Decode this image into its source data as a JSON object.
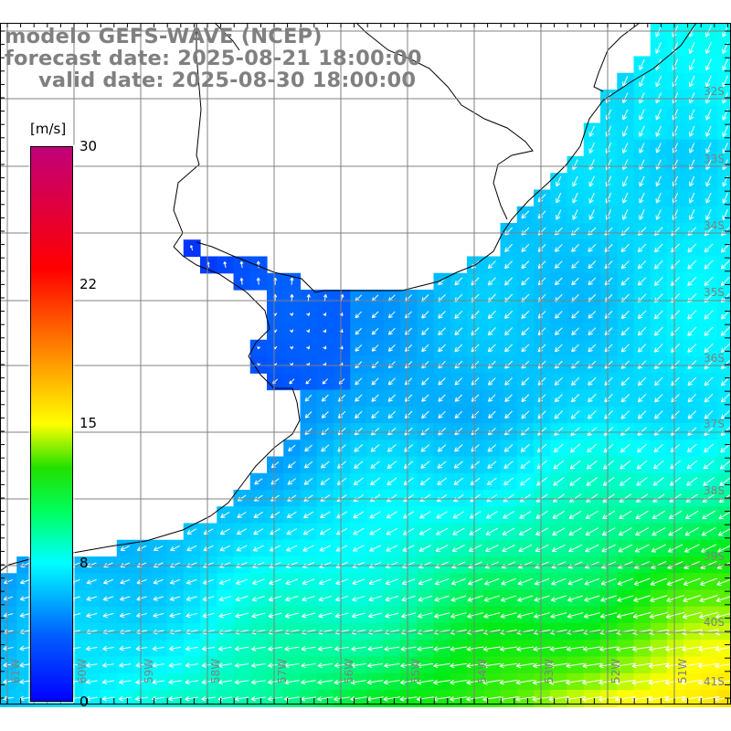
{
  "title": {
    "line1": "modelo GEFS-WAVE (NCEP)",
    "line2": "forecast date: 2025-08-21 18:00:00",
    "line3": "valid date: 2025-08-30 18:00:00"
  },
  "colorbar": {
    "unit": "[m/s]",
    "labels": [
      "30",
      "22",
      "15",
      "8",
      "0"
    ],
    "colors": [
      "#0000ff",
      "#00a0ff",
      "#00ffff",
      "#00ff60",
      "#20e000",
      "#ffff00",
      "#ff8000",
      "#ff0000",
      "#c0007a"
    ]
  },
  "grid": {
    "lat_labels": [
      "32S",
      "33S",
      "34S",
      "35S",
      "36S",
      "37S",
      "38S",
      "39S",
      "40S",
      "41S"
    ],
    "lon_labels": [
      "61W",
      "60W",
      "59W",
      "58W",
      "57W",
      "56W",
      "55W",
      "54W",
      "53W",
      "52W",
      "51W"
    ],
    "line_color": "#808080"
  },
  "colors": {
    "land": "#ffffff",
    "coast": "#000000",
    "arrow": "#ffffff"
  }
}
